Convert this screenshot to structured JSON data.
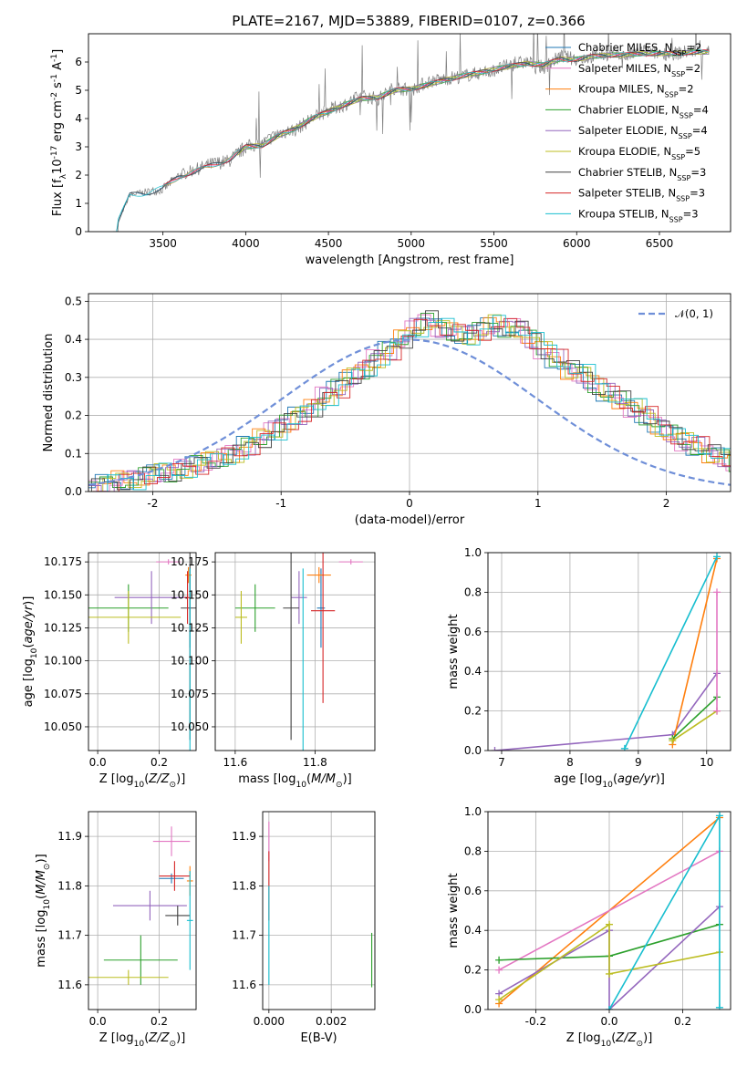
{
  "page": {
    "title": "PLATE=2167, MJD=53889, FIBERID=0107, z=0.366"
  },
  "colors": {
    "chabrier_miles": "#1f77b4",
    "salpeter_miles": "#e377c2",
    "kroupa_miles": "#ff7f0e",
    "chabrier_elodie": "#2ca02c",
    "salpeter_elodie": "#9467bd",
    "kroupa_elodie": "#bcbd22",
    "chabrier_stelib": "#404040",
    "salpeter_stelib": "#d62728",
    "kroupa_stelib": "#17becf",
    "data": "#808080",
    "normal": "#6f8fd8"
  },
  "chart_data": [
    {
      "id": "spectrum",
      "type": "line",
      "xlabel": "wavelength [Angstrom, rest frame]",
      "ylabel": "Flux [f$_\\lambda$10$^{-17}$ erg cm$^{-2}$ s$^{-1}$ A$^{-1}$]",
      "xlim": [
        3050,
        6930
      ],
      "ylim": [
        0,
        7
      ],
      "xticks": [
        3500,
        4000,
        4500,
        5000,
        5500,
        6000,
        6500
      ],
      "yticks": [
        0,
        1,
        2,
        3,
        4,
        5,
        6
      ],
      "legend_position": "top-right",
      "legend": [
        "Chabrier MILES, N$_{SSP}$=2",
        "Salpeter MILES, N$_{SSP}$=2",
        "Kroupa MILES, N$_{SSP}$=2",
        "Chabrier ELODIE, N$_{SSP}$=4",
        "Salpeter ELODIE, N$_{SSP}$=4",
        "Kroupa ELODIE, N$_{SSP}$=5",
        "Chabrier STELIB, N$_{SSP}$=3",
        "Salpeter STELIB, N$_{SSP}$=3",
        "Kroupa STELIB, N$_{SSP}$=3"
      ],
      "x": [
        3200,
        3300,
        3400,
        3500,
        3600,
        3700,
        3800,
        3900,
        4000,
        4100,
        4200,
        4300,
        4400,
        4500,
        4600,
        4700,
        4800,
        4900,
        5000,
        5100,
        5200,
        5300,
        5400,
        5500,
        5600,
        5700,
        5800,
        5900,
        6000,
        6100,
        6200,
        6300,
        6400,
        6500,
        6600,
        6700,
        6800
      ],
      "series": [
        {
          "name": "data",
          "values": [
            0.0,
            1.3,
            1.4,
            1.5,
            2.0,
            2.2,
            2.4,
            2.5,
            3.0,
            3.1,
            3.5,
            3.6,
            4.0,
            4.3,
            4.5,
            4.8,
            4.7,
            5.1,
            5.0,
            5.3,
            5.4,
            5.5,
            5.6,
            5.7,
            5.9,
            6.0,
            5.8,
            6.2,
            6.1,
            6.2,
            6.3,
            6.2,
            6.4,
            6.3,
            6.3,
            6.4,
            6.4
          ]
        },
        {
          "name": "model",
          "values": [
            0.0,
            1.3,
            1.35,
            1.55,
            1.95,
            2.15,
            2.35,
            2.55,
            3.0,
            3.05,
            3.4,
            3.65,
            4.0,
            4.25,
            4.5,
            4.7,
            4.75,
            5.0,
            5.05,
            5.2,
            5.35,
            5.5,
            5.6,
            5.75,
            5.85,
            5.95,
            5.9,
            6.1,
            6.1,
            6.2,
            6.25,
            6.25,
            6.3,
            6.3,
            6.3,
            6.35,
            6.35
          ]
        }
      ]
    },
    {
      "id": "residuals",
      "type": "bar",
      "xlabel": "(data-model)/error",
      "ylabel": "Normed distribution",
      "xlim": [
        -2.5,
        2.5
      ],
      "ylim": [
        0,
        0.52
      ],
      "xticks": [
        -2,
        -1,
        0,
        1,
        2
      ],
      "yticks": [
        0.0,
        0.1,
        0.2,
        0.3,
        0.4,
        0.5
      ],
      "legend": [
        "$\\mathcal{N}(0,1)$"
      ],
      "legend_position": "top-right",
      "bin_width": 0.1,
      "bin_left": -2.5,
      "hist_values": [
        0.01,
        0.02,
        0.03,
        0.03,
        0.04,
        0.05,
        0.05,
        0.06,
        0.07,
        0.08,
        0.09,
        0.1,
        0.12,
        0.14,
        0.16,
        0.18,
        0.2,
        0.22,
        0.25,
        0.27,
        0.3,
        0.32,
        0.35,
        0.37,
        0.4,
        0.43,
        0.45,
        0.43,
        0.42,
        0.41,
        0.42,
        0.44,
        0.43,
        0.43,
        0.4,
        0.37,
        0.35,
        0.32,
        0.31,
        0.28,
        0.26,
        0.24,
        0.22,
        0.2,
        0.17,
        0.15,
        0.13,
        0.12,
        0.1,
        0.09,
        0.07
      ]
    },
    {
      "id": "z-age",
      "type": "scatter",
      "xlabel": "Z [log$_{10}$($Z/Z_\\odot$)]",
      "ylabel": "age  [log$_{10}$($age/yr$)]",
      "xlim": [
        -0.03,
        0.32
      ],
      "ylim": [
        10.032,
        10.182
      ],
      "xticks": [
        0.0,
        0.2
      ],
      "yticks": [
        10.05,
        10.075,
        10.1,
        10.125,
        10.15,
        10.175
      ],
      "points": [
        {
          "series": "Chabrier MILES",
          "x": 0.3,
          "y": 10.14,
          "xerr": 0.0,
          "yerr": 0.03
        },
        {
          "series": "Salpeter MILES",
          "x": 0.23,
          "y": 10.175,
          "xerr": 0.04,
          "yerr": 0.002
        },
        {
          "series": "Kroupa MILES",
          "x": 0.295,
          "y": 10.165,
          "xerr": 0.01,
          "yerr": 0.006
        },
        {
          "series": "Chabrier ELODIE",
          "x": 0.1,
          "y": 10.14,
          "xerr": 0.13,
          "yerr": 0.018
        },
        {
          "series": "Salpeter ELODIE",
          "x": 0.175,
          "y": 10.148,
          "xerr": 0.12,
          "yerr": 0.02
        },
        {
          "series": "Kroupa ELODIE",
          "x": 0.1,
          "y": 10.133,
          "xerr": 0.17,
          "yerr": 0.02
        },
        {
          "series": "Chabrier STELIB",
          "x": 0.3,
          "y": 10.14,
          "xerr": 0.03,
          "yerr": 0.1
        },
        {
          "series": "Salpeter STELIB",
          "x": 0.292,
          "y": 10.148,
          "xerr": 0.01,
          "yerr": 0.02
        },
        {
          "series": "Kroupa STELIB",
          "x": 0.3,
          "y": 10.1,
          "xerr": 0.0,
          "yerr": 0.07
        }
      ]
    },
    {
      "id": "mass-age",
      "type": "scatter",
      "xlabel": "mass [log$_{10}$($M/M_\\odot$)]",
      "ylabel": "",
      "xlim": [
        11.55,
        11.95
      ],
      "ylim": [
        10.032,
        10.182
      ],
      "xticks": [
        11.6,
        11.8
      ],
      "yticks": [
        10.05,
        10.075,
        10.1,
        10.125,
        10.15,
        10.175
      ],
      "points": [
        {
          "series": "Chabrier MILES",
          "x": 11.815,
          "y": 10.14,
          "xerr": 0.01,
          "yerr": 0.03
        },
        {
          "series": "Salpeter MILES",
          "x": 11.89,
          "y": 10.175,
          "xerr": 0.03,
          "yerr": 0.002
        },
        {
          "series": "Kroupa MILES",
          "x": 11.81,
          "y": 10.165,
          "xerr": 0.03,
          "yerr": 0.006
        },
        {
          "series": "Chabrier ELODIE",
          "x": 11.65,
          "y": 10.14,
          "xerr": 0.05,
          "yerr": 0.018
        },
        {
          "series": "Salpeter ELODIE",
          "x": 11.76,
          "y": 10.148,
          "xerr": 0.02,
          "yerr": 0.02
        },
        {
          "series": "Kroupa ELODIE",
          "x": 11.615,
          "y": 10.133,
          "xerr": 0.015,
          "yerr": 0.02
        },
        {
          "series": "Chabrier STELIB",
          "x": 11.74,
          "y": 10.14,
          "xerr": 0.02,
          "yerr": 0.1
        },
        {
          "series": "Salpeter STELIB",
          "x": 11.82,
          "y": 10.138,
          "xerr": 0.03,
          "yerr": 0.07
        },
        {
          "series": "Kroupa STELIB",
          "x": 11.77,
          "y": 10.1,
          "xerr": 0.0,
          "yerr": 0.07
        }
      ]
    },
    {
      "id": "age-weight",
      "type": "line",
      "xlabel": "age  [log$_{10}$($age/yr$)]",
      "ylabel": "mass weight",
      "xlim": [
        6.8,
        10.35
      ],
      "ylim": [
        0,
        1
      ],
      "xticks": [
        7,
        8,
        9,
        10
      ],
      "yticks": [
        0.0,
        0.2,
        0.4,
        0.6,
        0.8,
        1.0
      ],
      "series": [
        {
          "name": "Salpeter ELODIE",
          "x": [
            6.9,
            9.5,
            10.15
          ],
          "y": [
            0.0,
            0.08,
            0.39
          ]
        },
        {
          "name": "Kroupa MILES",
          "x": [
            9.5,
            10.15
          ],
          "y": [
            0.03,
            0.97
          ]
        },
        {
          "name": "Kroupa STELIB",
          "x": [
            8.8,
            10.15
          ],
          "y": [
            0.01,
            0.98
          ]
        },
        {
          "name": "Chabrier ELODIE",
          "x": [
            9.5,
            10.15
          ],
          "y": [
            0.06,
            0.27
          ]
        },
        {
          "name": "Kroupa ELODIE",
          "x": [
            9.5,
            10.15
          ],
          "y": [
            0.05,
            0.2
          ]
        },
        {
          "name": "Salpeter MILES",
          "x": [
            10.15,
            10.15
          ],
          "y": [
            0.2,
            0.8
          ]
        }
      ]
    },
    {
      "id": "z-mass",
      "type": "scatter",
      "xlabel": "Z [log$_{10}$($Z/Z_\\odot$)]",
      "ylabel": "mass [log$_{10}$($M/M_\\odot$)]",
      "xlim": [
        -0.03,
        0.32
      ],
      "ylim": [
        11.55,
        11.95
      ],
      "xticks": [
        0.0,
        0.2
      ],
      "yticks": [
        11.6,
        11.7,
        11.8,
        11.9
      ],
      "points": [
        {
          "series": "Chabrier MILES",
          "x": 0.24,
          "y": 11.815,
          "xerr": 0.04,
          "yerr": 0.01
        },
        {
          "series": "Salpeter MILES",
          "x": 0.24,
          "y": 11.89,
          "xerr": 0.06,
          "yerr": 0.03
        },
        {
          "series": "Kroupa MILES",
          "x": 0.3,
          "y": 11.81,
          "xerr": 0.01,
          "yerr": 0.03
        },
        {
          "series": "Chabrier ELODIE",
          "x": 0.14,
          "y": 11.65,
          "xerr": 0.12,
          "yerr": 0.05
        },
        {
          "series": "Salpeter ELODIE",
          "x": 0.17,
          "y": 11.76,
          "xerr": 0.12,
          "yerr": 0.03
        },
        {
          "series": "Kroupa ELODIE",
          "x": 0.1,
          "y": 11.615,
          "xerr": 0.13,
          "yerr": 0.015
        },
        {
          "series": "Chabrier STELIB",
          "x": 0.26,
          "y": 11.74,
          "xerr": 0.04,
          "yerr": 0.02
        },
        {
          "series": "Salpeter STELIB",
          "x": 0.25,
          "y": 11.82,
          "xerr": 0.05,
          "yerr": 0.03
        },
        {
          "series": "Kroupa STELIB",
          "x": 0.3,
          "y": 11.73,
          "xerr": 0.01,
          "yerr": 0.1
        }
      ]
    },
    {
      "id": "ebv-mass",
      "type": "scatter",
      "xlabel": "E(B-V)",
      "ylabel": "",
      "xlim": [
        -0.0002,
        0.0034
      ],
      "ylim": [
        11.55,
        11.95
      ],
      "xticks": [
        0.0,
        0.002
      ],
      "yticks": [
        11.6,
        11.7,
        11.8,
        11.9
      ],
      "points": [
        {
          "series": "Salpeter MILES",
          "x": 0.0,
          "y": 11.89,
          "xerr": 0.0,
          "yerr": 0.04
        },
        {
          "series": "Salpeter STELIB",
          "x": 0.0,
          "y": 11.8,
          "xerr": 0.0,
          "yerr": 0.07
        },
        {
          "series": "Kroupa STELIB",
          "x": 0.0,
          "y": 11.7,
          "xerr": 0.0,
          "yerr": 0.1
        },
        {
          "series": "Chabrier ELODIE",
          "x": 0.0033,
          "y": 11.65,
          "xerr": 0.0,
          "yerr": 0.055
        }
      ]
    },
    {
      "id": "z-weight",
      "type": "line",
      "xlabel": "Z [log$_{10}$($Z/Z_\\odot$)]",
      "ylabel": "mass weight",
      "xlim": [
        -0.33,
        0.33
      ],
      "ylim": [
        0,
        1
      ],
      "xticks": [
        -0.2,
        0.0,
        0.2
      ],
      "yticks": [
        0.0,
        0.2,
        0.4,
        0.6,
        0.8,
        1.0
      ],
      "series": [
        {
          "name": "Kroupa MILES",
          "x": [
            -0.3,
            0.3
          ],
          "y": [
            0.03,
            0.97
          ]
        },
        {
          "name": "Salpeter MILES",
          "x": [
            -0.3,
            0.3
          ],
          "y": [
            0.2,
            0.8
          ]
        },
        {
          "name": "Chabrier ELODIE",
          "x": [
            -0.3,
            0.0,
            0.3
          ],
          "y": [
            0.25,
            0.27,
            0.43
          ]
        },
        {
          "name": "Salpeter ELODIE",
          "x": [
            -0.3,
            0.0,
            0.0,
            0.3
          ],
          "y": [
            0.08,
            0.4,
            0.0,
            0.52
          ]
        },
        {
          "name": "Kroupa ELODIE",
          "x": [
            -0.3,
            0.0,
            0.0,
            0.3
          ],
          "y": [
            0.05,
            0.43,
            0.18,
            0.29
          ]
        },
        {
          "name": "Kroupa STELIB",
          "x": [
            0.0,
            0.3,
            0.3
          ],
          "y": [
            0.0,
            0.98,
            0.01
          ]
        }
      ]
    }
  ]
}
